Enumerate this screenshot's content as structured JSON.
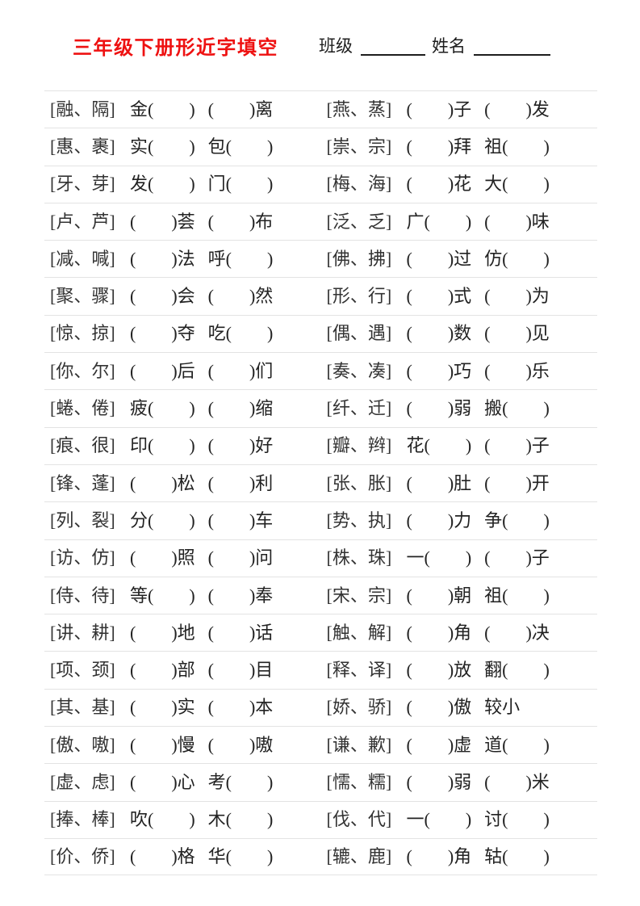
{
  "header": {
    "title": "三年级下册形近字填空",
    "title_color": "#ee1111",
    "class_label": "班级",
    "name_label": "姓名"
  },
  "worksheet": {
    "rows": [
      {
        "l": {
          "pair": "[融、隔]",
          "p1": "金(　　)",
          "p2": "(　　)离"
        },
        "r": {
          "pair": "[燕、蒸]",
          "p1": "(　　)子",
          "p2": "(　　)发"
        }
      },
      {
        "l": {
          "pair": "[惠、裹]",
          "p1": "实(　　)",
          "p2": "包(　　)"
        },
        "r": {
          "pair": "[崇、宗]",
          "p1": "(　　)拜",
          "p2": "祖(　　)"
        }
      },
      {
        "l": {
          "pair": "[牙、芽]",
          "p1": "发(　　)",
          "p2": "门(　　)"
        },
        "r": {
          "pair": "[梅、海]",
          "p1": "(　　)花",
          "p2": "大(　　)"
        }
      },
      {
        "l": {
          "pair": "[卢、芦]",
          "p1": "(　　)荟",
          "p2": "(　　)布"
        },
        "r": {
          "pair": "[泛、乏]",
          "p1": "广(　　)",
          "p2": "(　　)味"
        }
      },
      {
        "l": {
          "pair": "[减、喊]",
          "p1": "(　　)法",
          "p2": "呼(　　)"
        },
        "r": {
          "pair": "[佛、拂]",
          "p1": "(　　)过",
          "p2": "仿(　　)"
        }
      },
      {
        "l": {
          "pair": "[聚、骤]",
          "p1": "(　　)会",
          "p2": "(　　)然"
        },
        "r": {
          "pair": "[形、行]",
          "p1": "(　　)式",
          "p2": "(　　)为"
        }
      },
      {
        "l": {
          "pair": "[惊、掠]",
          "p1": "(　　)夺",
          "p2": "吃(　　)"
        },
        "r": {
          "pair": "[偶、遇]",
          "p1": "(　　)数",
          "p2": "(　　)见"
        }
      },
      {
        "l": {
          "pair": "[你、尔]",
          "p1": "(　　)后",
          "p2": "(　　)们"
        },
        "r": {
          "pair": "[奏、凑]",
          "p1": "(　　)巧",
          "p2": "(　　)乐"
        }
      },
      {
        "l": {
          "pair": "[蜷、倦]",
          "p1": "疲(　　)",
          "p2": "(　　)缩"
        },
        "r": {
          "pair": "[纤、迁]",
          "p1": "(　　)弱",
          "p2": "搬(　　)"
        }
      },
      {
        "l": {
          "pair": "[痕、很]",
          "p1": "印(　　)",
          "p2": "(　　)好"
        },
        "r": {
          "pair": "[瓣、辫]",
          "p1": "花(　　)",
          "p2": "(　　)子"
        }
      },
      {
        "l": {
          "pair": "[锋、蓬]",
          "p1": "(　　)松",
          "p2": "(　　)利"
        },
        "r": {
          "pair": "[张、胀]",
          "p1": "(　　)肚",
          "p2": "(　　)开"
        }
      },
      {
        "l": {
          "pair": "[列、裂]",
          "p1": "分(　　)",
          "p2": "(　　)车"
        },
        "r": {
          "pair": "[势、执]",
          "p1": "(　　)力",
          "p2": "争(　　)"
        }
      },
      {
        "l": {
          "pair": "[访、仿]",
          "p1": "(　　)照",
          "p2": "(　　)问"
        },
        "r": {
          "pair": "[株、珠]",
          "p1": "一(　　)",
          "p2": "(　　)子"
        }
      },
      {
        "l": {
          "pair": "[侍、待]",
          "p1": "等(　　)",
          "p2": "(　　)奉"
        },
        "r": {
          "pair": "[宋、宗]",
          "p1": "(　　)朝",
          "p2": "祖(　　)"
        }
      },
      {
        "l": {
          "pair": "[讲、耕]",
          "p1": "(　　)地",
          "p2": "(　　)话"
        },
        "r": {
          "pair": "[触、解]",
          "p1": "(　　)角",
          "p2": "(　　)决"
        }
      },
      {
        "l": {
          "pair": "[项、颈]",
          "p1": "(　　)部",
          "p2": "(　　)目"
        },
        "r": {
          "pair": "[释、译]",
          "p1": "(　　)放",
          "p2": "翻(　　)"
        }
      },
      {
        "l": {
          "pair": "[其、基]",
          "p1": "(　　)实",
          "p2": "(　　)本"
        },
        "r": {
          "pair": "[娇、骄]",
          "p1": "(　　)傲",
          "p2": "较小"
        }
      },
      {
        "l": {
          "pair": "[傲、嗷]",
          "p1": "(　　)慢",
          "p2": "(　　)嗷"
        },
        "r": {
          "pair": "[谦、歉]",
          "p1": "(　　)虚",
          "p2": "道(　　)"
        }
      },
      {
        "l": {
          "pair": "[虚、虑]",
          "p1": "(　　)心",
          "p2": "考(　　)"
        },
        "r": {
          "pair": "[懦、糯]",
          "p1": "(　　)弱",
          "p2": "(　　)米"
        }
      },
      {
        "l": {
          "pair": "[捧、棒]",
          "p1": "吹(　　)",
          "p2": "木(　　)"
        },
        "r": {
          "pair": "[伐、代]",
          "p1": "一(　　)",
          "p2": "讨(　　)"
        }
      },
      {
        "l": {
          "pair": "[价、侨]",
          "p1": "(　　)格",
          "p2": "华(　　)"
        },
        "r": {
          "pair": "[辘、鹿]",
          "p1": "(　　)角",
          "p2": "轱(　　)"
        }
      }
    ]
  }
}
